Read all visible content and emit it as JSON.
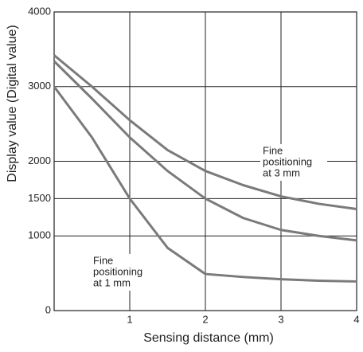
{
  "chart_data": {
    "type": "line",
    "x_label": "Sensing distance (mm)",
    "y_label": "Display value (Digital value)",
    "x": [
      0,
      0.5,
      1,
      1.5,
      2,
      2.5,
      3,
      3.5,
      4
    ],
    "series": [
      {
        "color": "#7a7a7a",
        "values": [
          3420,
          3000,
          2550,
          2150,
          1870,
          1680,
          1530,
          1430,
          1360
        ]
      },
      {
        "color": "#7a7a7a",
        "values": [
          3340,
          2840,
          2320,
          1870,
          1500,
          1240,
          1080,
          1000,
          940
        ]
      },
      {
        "color": "#7a7a7a",
        "values": [
          3000,
          2320,
          1500,
          840,
          490,
          450,
          420,
          400,
          390
        ]
      }
    ],
    "annotations": [
      [
        "Fine",
        "positioning",
        "at 3 mm"
      ],
      [
        "Fine",
        "positioning",
        "at 1 mm"
      ]
    ],
    "xlim": [
      0,
      4
    ],
    "xticks": [
      1,
      2,
      3,
      4
    ],
    "ylim": [
      0,
      4000
    ],
    "yticks": [
      0,
      1000,
      1500,
      2000,
      3000,
      4000
    ],
    "grid": true
  }
}
